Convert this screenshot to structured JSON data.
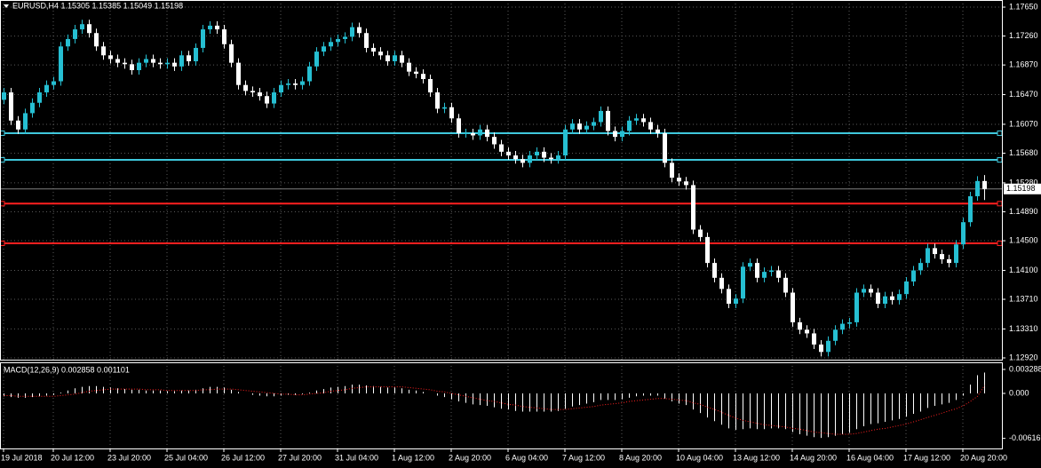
{
  "chart_data": {
    "type": "candlestick",
    "title": "EURUSD,H4  1.15305 1.15385 1.15049 1.15198",
    "categories": [
      "19 Jul 2018",
      null,
      null,
      null,
      null,
      null,
      null,
      "20 Jul 12:00",
      null,
      null,
      null,
      null,
      null,
      null,
      null,
      "23 Jul 20:00",
      null,
      null,
      null,
      null,
      null,
      null,
      null,
      "25 Jul 04:00",
      null,
      null,
      null,
      null,
      null,
      null,
      null,
      "26 Jul 12:00",
      null,
      null,
      null,
      null,
      null,
      null,
      null,
      "27 Jul 20:00",
      null,
      null,
      null,
      null,
      null,
      null,
      null,
      "31 Jul 04:00",
      null,
      null,
      null,
      null,
      null,
      null,
      null,
      "1 Aug 12:00",
      null,
      null,
      null,
      null,
      null,
      null,
      null,
      "2 Aug 20:00",
      null,
      null,
      null,
      null,
      null,
      null,
      null,
      "6 Aug 04:00",
      null,
      null,
      null,
      null,
      null,
      null,
      null,
      "7 Aug 12:00",
      null,
      null,
      null,
      null,
      null,
      null,
      null,
      "8 Aug 20:00",
      null,
      null,
      null,
      null,
      null,
      null,
      null,
      "10 Aug 04:00",
      null,
      null,
      null,
      null,
      null,
      null,
      null,
      "13 Aug 12:00",
      null,
      null,
      null,
      null,
      null,
      null,
      null,
      "14 Aug 20:00",
      null,
      null,
      null,
      null,
      null,
      null,
      null,
      "16 Aug 04:00",
      null,
      null,
      null,
      null,
      null,
      null,
      null,
      "17 Aug 12:00",
      null,
      null,
      null,
      null,
      null,
      null,
      null,
      "20 Aug 20:00",
      null,
      null,
      null
    ],
    "open": [
      1.164,
      1.165,
      1.1612,
      1.16,
      1.1622,
      1.1636,
      1.165,
      1.166,
      1.1665,
      1.1712,
      1.1722,
      1.1735,
      1.1742,
      1.173,
      1.1712,
      1.17,
      1.1695,
      1.169,
      1.1688,
      1.168,
      1.169,
      1.1695,
      1.169,
      1.1688,
      1.169,
      1.1685,
      1.17,
      1.1692,
      1.171,
      1.1735,
      1.174,
      1.1735,
      1.1715,
      1.169,
      1.166,
      1.1652,
      1.165,
      1.1645,
      1.1635,
      1.165,
      1.166,
      1.1662,
      1.166,
      1.1665,
      1.1685,
      1.1705,
      1.1712,
      1.1718,
      1.1722,
      1.1725,
      1.1738,
      1.173,
      1.171,
      1.1705,
      1.17,
      1.1692,
      1.17,
      1.169,
      1.1678,
      1.1675,
      1.1668,
      1.165,
      1.1628,
      1.163,
      1.1615,
      1.1595,
      1.1595,
      1.1592,
      1.16,
      1.159,
      1.158,
      1.157,
      1.1565,
      1.156,
      1.1555,
      1.1565,
      1.157,
      1.1562,
      1.156,
      1.1565,
      1.16,
      1.1608,
      1.16,
      1.1605,
      1.161,
      1.1625,
      1.1598,
      1.159,
      1.1598,
      1.1612,
      1.1615,
      1.161,
      1.16,
      1.1595,
      1.1555,
      1.1535,
      1.153,
      1.1525,
      1.1465,
      1.1455,
      1.142,
      1.14,
      1.1385,
      1.1365,
      1.1372,
      1.1415,
      1.142,
      1.14,
      1.1408,
      1.141,
      1.14,
      1.138,
      1.134,
      1.133,
      1.1325,
      1.131,
      1.13,
      1.1315,
      1.133,
      1.1338,
      1.134,
      1.138,
      1.1385,
      1.138,
      1.1365,
      1.1375,
      1.137,
      1.1378,
      1.1395,
      1.141,
      1.142,
      1.144,
      1.1432,
      1.1425,
      1.142,
      1.1445,
      1.1475,
      1.151,
      1.15305
    ],
    "high": [
      1.1656,
      1.1656,
      1.1618,
      1.1628,
      1.1642,
      1.1656,
      1.1666,
      1.1671,
      1.1718,
      1.1728,
      1.1741,
      1.1748,
      1.1748,
      1.1736,
      1.1718,
      1.1706,
      1.1701,
      1.1696,
      1.1694,
      1.1696,
      1.1701,
      1.1701,
      1.1696,
      1.1696,
      1.1696,
      1.1706,
      1.1706,
      1.1716,
      1.1741,
      1.1746,
      1.1746,
      1.1741,
      1.1721,
      1.1696,
      1.1666,
      1.1658,
      1.1656,
      1.1651,
      1.1656,
      1.1666,
      1.1668,
      1.1668,
      1.1671,
      1.1691,
      1.1711,
      1.1718,
      1.1724,
      1.1728,
      1.1731,
      1.1744,
      1.1744,
      1.1736,
      1.1716,
      1.1711,
      1.1706,
      1.1706,
      1.1706,
      1.1696,
      1.1684,
      1.1681,
      1.1674,
      1.1656,
      1.1636,
      1.1636,
      1.1621,
      1.1601,
      1.1601,
      1.1606,
      1.1606,
      1.1596,
      1.1586,
      1.1576,
      1.1571,
      1.1566,
      1.1571,
      1.1576,
      1.1576,
      1.1568,
      1.1571,
      1.1606,
      1.1614,
      1.1614,
      1.1611,
      1.1616,
      1.1631,
      1.1631,
      1.1604,
      1.1604,
      1.1618,
      1.1621,
      1.1621,
      1.1616,
      1.1606,
      1.1601,
      1.1561,
      1.1541,
      1.1536,
      1.1531,
      1.1471,
      1.1461,
      1.1426,
      1.1406,
      1.1391,
      1.1378,
      1.1421,
      1.1426,
      1.1426,
      1.1414,
      1.1416,
      1.1416,
      1.1406,
      1.1386,
      1.1346,
      1.1336,
      1.1331,
      1.1316,
      1.1321,
      1.1336,
      1.1344,
      1.1346,
      1.1386,
      1.1391,
      1.1391,
      1.1386,
      1.1381,
      1.1381,
      1.1384,
      1.1401,
      1.1416,
      1.1426,
      1.1446,
      1.1446,
      1.1438,
      1.1431,
      1.1451,
      1.1481,
      1.1516,
      1.1537,
      1.15385
    ],
    "low": [
      1.1634,
      1.1606,
      1.1594,
      1.1594,
      1.1616,
      1.163,
      1.1644,
      1.1654,
      1.1659,
      1.1706,
      1.1716,
      1.1729,
      1.1724,
      1.1706,
      1.1694,
      1.1689,
      1.1684,
      1.1682,
      1.1674,
      1.1674,
      1.1684,
      1.1684,
      1.1682,
      1.1682,
      1.1679,
      1.1679,
      1.1686,
      1.1686,
      1.1704,
      1.1729,
      1.1729,
      1.1709,
      1.1684,
      1.1654,
      1.1646,
      1.1644,
      1.1639,
      1.1629,
      1.1629,
      1.1644,
      1.1654,
      1.1654,
      1.1654,
      1.1659,
      1.1679,
      1.1699,
      1.1706,
      1.1712,
      1.1716,
      1.1719,
      1.1724,
      1.1704,
      1.1699,
      1.1694,
      1.1686,
      1.1686,
      1.1684,
      1.1672,
      1.1669,
      1.1662,
      1.1644,
      1.1622,
      1.1622,
      1.1609,
      1.1589,
      1.1589,
      1.1586,
      1.1586,
      1.1584,
      1.1574,
      1.1564,
      1.1559,
      1.1554,
      1.1549,
      1.1549,
      1.1559,
      1.1556,
      1.1554,
      1.1554,
      1.1559,
      1.1594,
      1.1594,
      1.1594,
      1.1599,
      1.1604,
      1.1592,
      1.1584,
      1.1584,
      1.1592,
      1.1606,
      1.1604,
      1.1594,
      1.1589,
      1.1549,
      1.1529,
      1.1524,
      1.1519,
      1.1459,
      1.1449,
      1.1414,
      1.1394,
      1.1379,
      1.1359,
      1.1359,
      1.1366,
      1.1409,
      1.1394,
      1.1394,
      1.1402,
      1.1394,
      1.1374,
      1.1334,
      1.1324,
      1.1319,
      1.1304,
      1.1294,
      1.1294,
      1.1309,
      1.1324,
      1.1332,
      1.1334,
      1.1374,
      1.1374,
      1.1359,
      1.1359,
      1.1364,
      1.1364,
      1.1372,
      1.1389,
      1.1404,
      1.1414,
      1.1426,
      1.1419,
      1.1414,
      1.1414,
      1.1439,
      1.1469,
      1.1504,
      1.15049
    ],
    "close": [
      1.165,
      1.1612,
      1.16,
      1.1622,
      1.1636,
      1.165,
      1.166,
      1.1665,
      1.1712,
      1.1722,
      1.1735,
      1.1742,
      1.173,
      1.1712,
      1.17,
      1.1695,
      1.169,
      1.1688,
      1.168,
      1.169,
      1.1695,
      1.169,
      1.1688,
      1.169,
      1.1685,
      1.17,
      1.1692,
      1.171,
      1.1735,
      1.174,
      1.1735,
      1.1715,
      1.169,
      1.166,
      1.1652,
      1.165,
      1.1645,
      1.1635,
      1.165,
      1.166,
      1.1662,
      1.166,
      1.1665,
      1.1685,
      1.1705,
      1.1712,
      1.1718,
      1.1722,
      1.1725,
      1.1738,
      1.173,
      1.171,
      1.1705,
      1.17,
      1.1692,
      1.17,
      1.169,
      1.1678,
      1.1675,
      1.1668,
      1.165,
      1.1628,
      1.163,
      1.1615,
      1.1595,
      1.1595,
      1.1592,
      1.16,
      1.159,
      1.158,
      1.157,
      1.1565,
      1.156,
      1.1555,
      1.1565,
      1.157,
      1.1562,
      1.156,
      1.1565,
      1.16,
      1.1608,
      1.16,
      1.1605,
      1.161,
      1.1625,
      1.1598,
      1.159,
      1.1598,
      1.1612,
      1.1615,
      1.161,
      1.16,
      1.1595,
      1.1555,
      1.1535,
      1.153,
      1.1525,
      1.1465,
      1.1455,
      1.142,
      1.14,
      1.1385,
      1.1365,
      1.1372,
      1.1415,
      1.142,
      1.14,
      1.1408,
      1.141,
      1.14,
      1.138,
      1.134,
      1.133,
      1.1325,
      1.131,
      1.13,
      1.1315,
      1.133,
      1.1338,
      1.134,
      1.138,
      1.1385,
      1.138,
      1.1365,
      1.1375,
      1.137,
      1.1378,
      1.1395,
      1.141,
      1.142,
      1.144,
      1.1432,
      1.1425,
      1.142,
      1.1445,
      1.1475,
      1.151,
      1.15305,
      1.15198
    ],
    "bull_color": "#26bfd2",
    "bear_color": "#ffffff",
    "grid": true,
    "ylim": [
      1.12896,
      1.17746
    ],
    "yticks": [
      {
        "value": 1.1765,
        "label": "1.17650"
      },
      {
        "value": 1.1726,
        "label": "1.17260"
      },
      {
        "value": 1.1687,
        "label": "1.16870"
      },
      {
        "value": 1.1647,
        "label": "1.16470"
      },
      {
        "value": 1.1607,
        "label": "1.16070"
      },
      {
        "value": 1.1568,
        "label": "1.15680"
      },
      {
        "value": 1.1528,
        "label": "1.15280"
      },
      {
        "value": 1.1489,
        "label": "1.14890"
      },
      {
        "value": 1.145,
        "label": "1.14500"
      },
      {
        "value": 1.141,
        "label": "1.14100"
      },
      {
        "value": 1.1371,
        "label": "1.13710"
      },
      {
        "value": 1.1331,
        "label": "1.13310"
      },
      {
        "value": 1.1292,
        "label": "1.12920"
      }
    ],
    "levels": [
      {
        "value": 1.1595,
        "color": "#3fc8dc"
      },
      {
        "value": 1.1559,
        "color": "#3fc8dc"
      },
      {
        "value": 1.15,
        "color": "#ff2020"
      },
      {
        "value": 1.14465,
        "color": "#ff2020"
      }
    ],
    "current_price": 1.15198,
    "indicator": {
      "title": "MACD(12,26,9) 0.002858 0.001101",
      "hist_color": "#ffffff",
      "signal_color": "#ff2020",
      "ylim": [
        -0.00755,
        0.004262
      ],
      "yticks": [
        0.003288,
        {
          "value": 0,
          "label": "0.000"
        },
        -0.006166
      ],
      "histogram": [
        -0.0004,
        -0.0005,
        -0.0006,
        -0.0006,
        -0.0005,
        -0.0004,
        -0.0003,
        -0.0002,
        0.0001,
        0.0004,
        0.0007,
        0.0009,
        0.001,
        0.001,
        0.0009,
        0.0008,
        0.0007,
        0.0006,
        0.0005,
        0.0005,
        0.0004,
        0.0004,
        0.0004,
        0.0003,
        0.0003,
        0.0004,
        0.0004,
        0.0005,
        0.0007,
        0.0009,
        0.0009,
        0.0008,
        0.0005,
        0.0002,
        0.0,
        -0.0002,
        -0.0003,
        -0.0004,
        -0.0004,
        -0.0003,
        -0.0002,
        -0.0002,
        -0.0001,
        0.0001,
        0.0004,
        0.0006,
        0.0008,
        0.0009,
        0.001,
        0.0012,
        0.0012,
        0.0011,
        0.001,
        0.0009,
        0.0008,
        0.0008,
        0.0007,
        0.0005,
        0.0004,
        0.0002,
        0.0,
        -0.0003,
        -0.0005,
        -0.0008,
        -0.0011,
        -0.0013,
        -0.0015,
        -0.0016,
        -0.0017,
        -0.0019,
        -0.0021,
        -0.0022,
        -0.0024,
        -0.0025,
        -0.0025,
        -0.0025,
        -0.0025,
        -0.0025,
        -0.0024,
        -0.0021,
        -0.0018,
        -0.0016,
        -0.0014,
        -0.0012,
        -0.0009,
        -0.0009,
        -0.0009,
        -0.0008,
        -0.0006,
        -0.0004,
        -0.0003,
        -0.0003,
        -0.0003,
        -0.0007,
        -0.0011,
        -0.0014,
        -0.0016,
        -0.0022,
        -0.0027,
        -0.0033,
        -0.0038,
        -0.0043,
        -0.0048,
        -0.005,
        -0.0049,
        -0.0048,
        -0.0049,
        -0.0049,
        -0.0048,
        -0.0048,
        -0.0049,
        -0.0053,
        -0.0056,
        -0.0058,
        -0.006,
        -0.0061,
        -0.006,
        -0.0058,
        -0.0056,
        -0.0054,
        -0.0049,
        -0.0045,
        -0.0042,
        -0.0041,
        -0.0039,
        -0.0037,
        -0.0035,
        -0.0032,
        -0.0028,
        -0.0025,
        -0.002,
        -0.0017,
        -0.0015,
        -0.0013,
        -0.0009,
        -0.0003,
        0.0012,
        0.0025,
        0.002858
      ],
      "signal": [
        -0.0003,
        -0.0003,
        -0.0004,
        -0.0004,
        -0.0004,
        -0.0004,
        -0.0004,
        -0.0004,
        -0.0003,
        -0.0002,
        -0.0001,
        0.0001,
        0.0003,
        0.0004,
        0.0005,
        0.0006,
        0.0006,
        0.0006,
        0.0006,
        0.0006,
        0.0005,
        0.0005,
        0.0005,
        0.0004,
        0.0004,
        0.0004,
        0.0004,
        0.0004,
        0.0005,
        0.0005,
        0.0006,
        0.0006,
        0.0006,
        0.0005,
        0.0004,
        0.0003,
        0.0002,
        0.0001,
        0.0,
        -0.0001,
        -0.0001,
        -0.0002,
        -0.0002,
        -0.0001,
        0.0,
        0.0001,
        0.0003,
        0.0004,
        0.0005,
        0.0007,
        0.0008,
        0.0009,
        0.0009,
        0.0009,
        0.0009,
        0.0009,
        0.0009,
        0.0008,
        0.0007,
        0.0006,
        0.0005,
        0.0003,
        0.0002,
        0.0,
        -0.0002,
        -0.0004,
        -0.0006,
        -0.0008,
        -0.001,
        -0.0011,
        -0.0013,
        -0.0015,
        -0.0016,
        -0.0018,
        -0.0019,
        -0.002,
        -0.0021,
        -0.0022,
        -0.0022,
        -0.0022,
        -0.0021,
        -0.002,
        -0.0019,
        -0.0018,
        -0.0016,
        -0.0015,
        -0.0014,
        -0.0013,
        -0.0011,
        -0.001,
        -0.0009,
        -0.0008,
        -0.0007,
        -0.0007,
        -0.0008,
        -0.0009,
        -0.001,
        -0.0013,
        -0.0015,
        -0.0019,
        -0.0022,
        -0.0026,
        -0.003,
        -0.0034,
        -0.0037,
        -0.0039,
        -0.0041,
        -0.0043,
        -0.0044,
        -0.0045,
        -0.0046,
        -0.0048,
        -0.0049,
        -0.0051,
        -0.0053,
        -0.0054,
        -0.0055,
        -0.0056,
        -0.0056,
        -0.0056,
        -0.0055,
        -0.0053,
        -0.0051,
        -0.0049,
        -0.0048,
        -0.0046,
        -0.0044,
        -0.0042,
        -0.0039,
        -0.0036,
        -0.0033,
        -0.003,
        -0.0027,
        -0.0024,
        -0.0021,
        -0.0017,
        -0.0011,
        -0.0004,
        0.001101
      ]
    }
  }
}
